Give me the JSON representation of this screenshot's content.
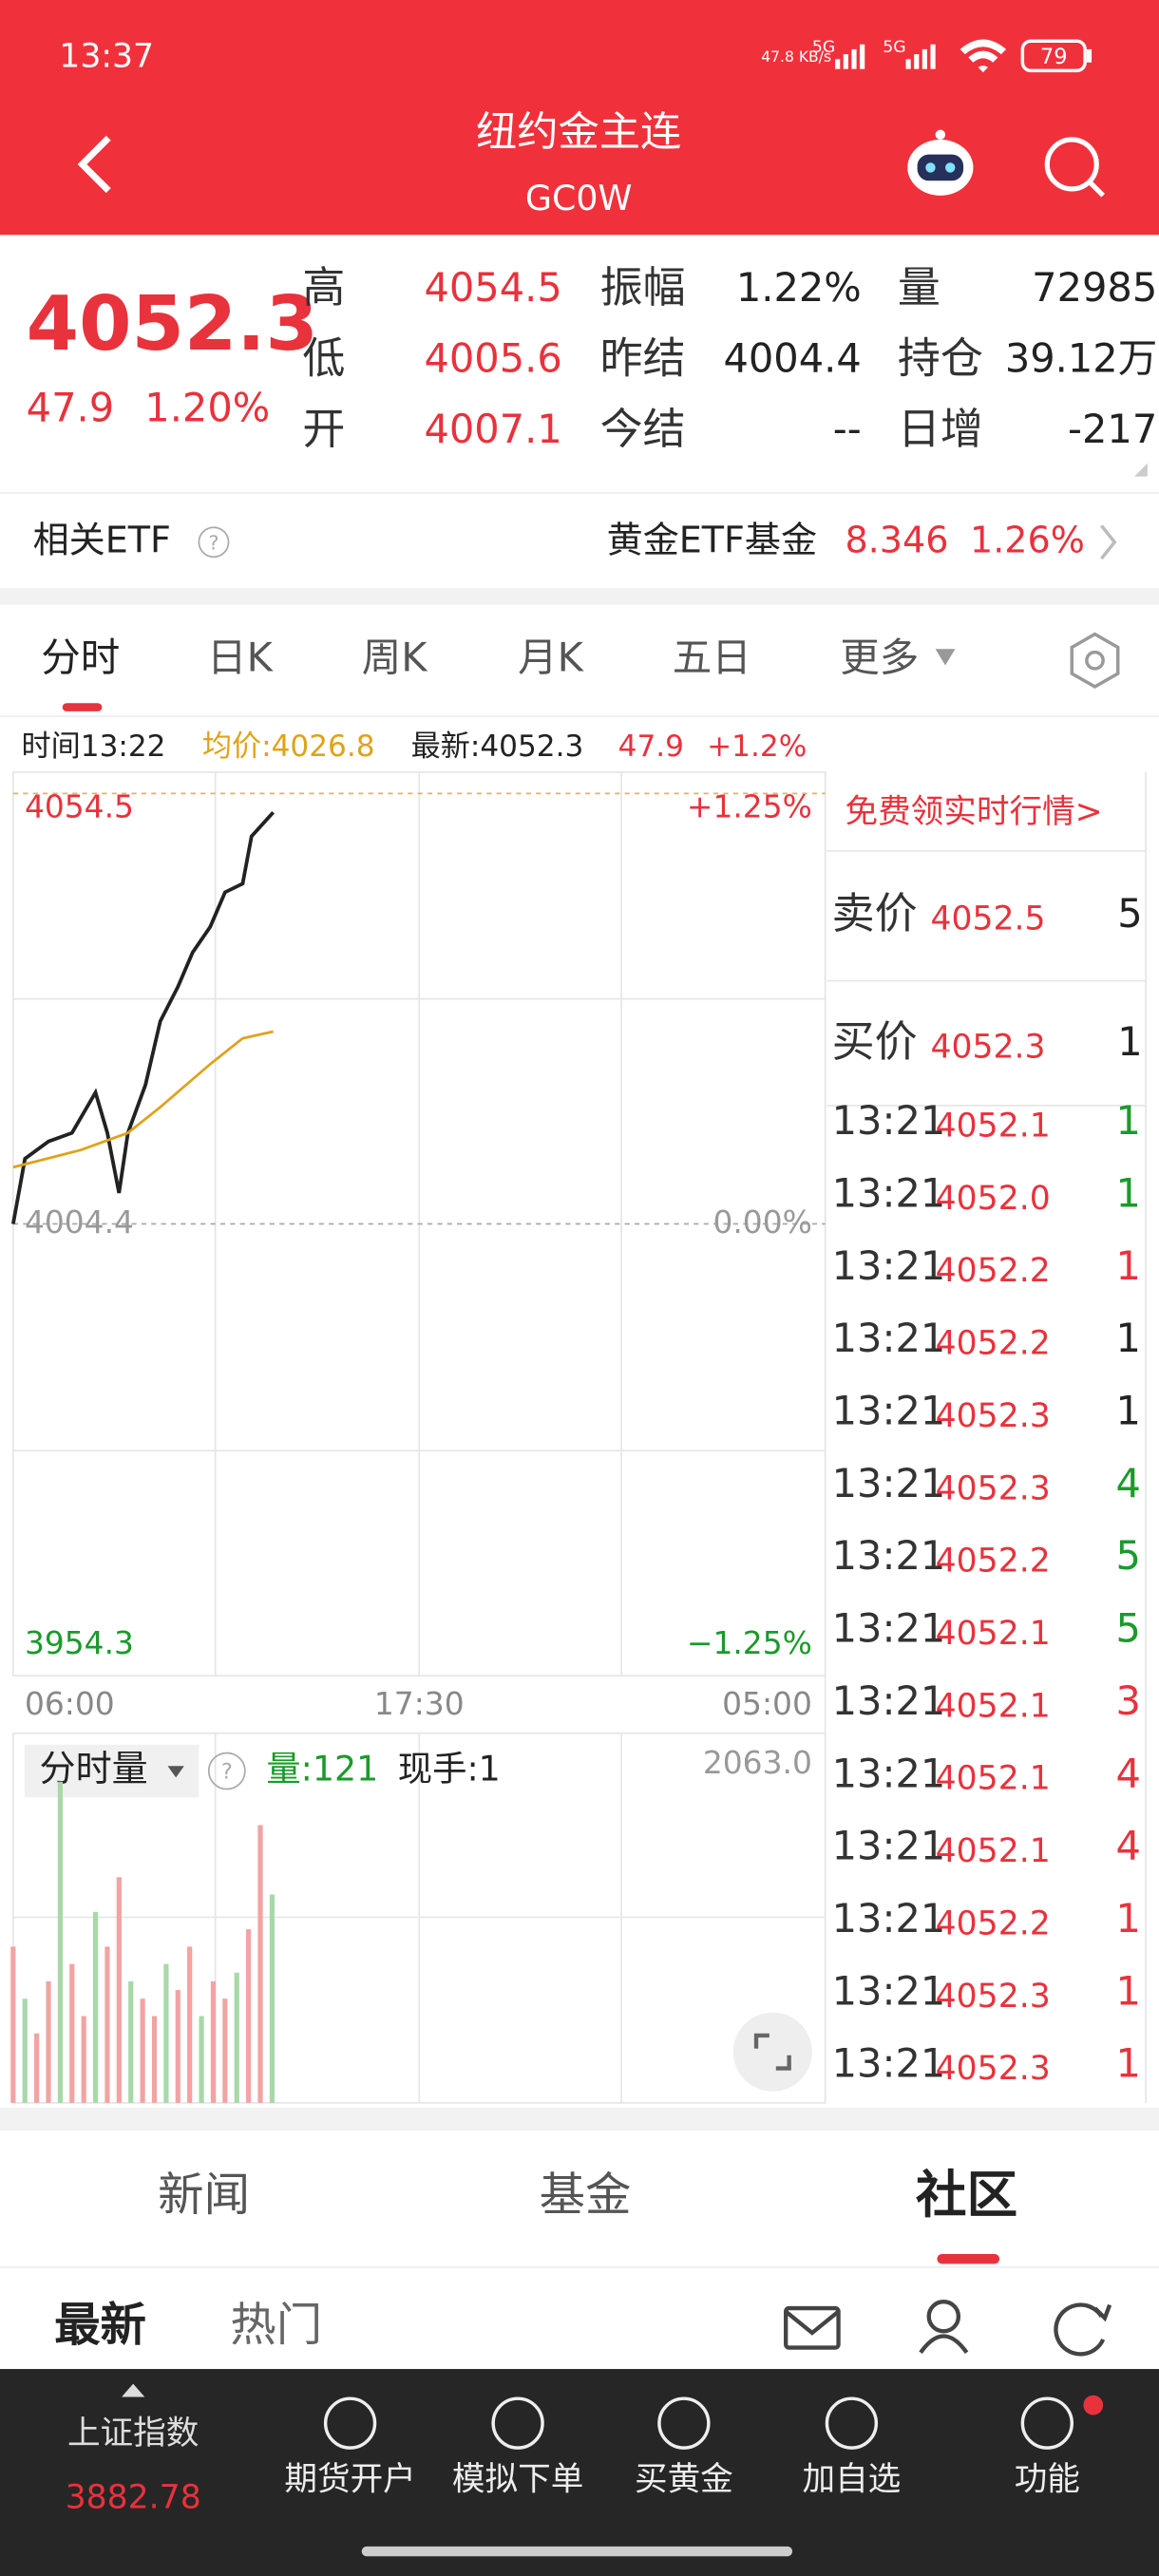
{
  "status_bar": {
    "time": "13:37",
    "net_speed": "47.8 KB/s",
    "net1": "5G",
    "net2": "5G",
    "battery": "79"
  },
  "header": {
    "title": "纽约金主连",
    "code": "GC0W"
  },
  "quote": {
    "price": "4052.3",
    "change": "47.9",
    "change_pct": "1.20%",
    "stats": [
      [
        [
          "高",
          "4054.5"
        ],
        [
          "振幅",
          "1.22%"
        ],
        [
          "量",
          "72985"
        ]
      ],
      [
        [
          "低",
          "4005.6"
        ],
        [
          "昨结",
          "4004.4"
        ],
        [
          "持仓",
          "39.12万"
        ]
      ],
      [
        [
          "开",
          "4007.1"
        ],
        [
          "今结",
          "--"
        ],
        [
          "日增",
          "-217"
        ]
      ]
    ]
  },
  "etf": {
    "label": "相关ETF",
    "fund": "黄金ETF基金",
    "price": "8.346",
    "pct": "1.26%"
  },
  "tabs": [
    "分时",
    "日K",
    "周K",
    "月K",
    "五日",
    "更多"
  ],
  "chart_info": {
    "time": "时间13:22",
    "avg": "均价:4026.8",
    "latest": "最新:4052.3",
    "change": "47.9",
    "pct": "+1.2%"
  },
  "chart_data": [
    {
      "type": "line",
      "xlim": [
        "06:00",
        "05:00"
      ],
      "xticks": [
        "06:00",
        "17:30",
        "05:00"
      ],
      "ylim": [
        3954.3,
        4054.5
      ],
      "yticks": [
        3954.3,
        4004.4,
        4054.5
      ],
      "ytick_colors": [
        "#1a9a2a",
        "#999999",
        "#e8323c"
      ],
      "y2lim": [
        -1.25,
        1.25
      ],
      "y2ticks": [
        {
          "value": -1.25,
          "label": "−1.25%"
        },
        {
          "value": 0,
          "label": "0.00%"
        },
        {
          "value": 1.25,
          "label": "+1.25%"
        }
      ],
      "series": [
        {
          "color": "#222222",
          "x": [
            "06:00",
            "06:20",
            "07:00",
            "07:40",
            "08:20",
            "08:40",
            "09:00",
            "09:15",
            "09:45",
            "10:10",
            "10:40",
            "11:05",
            "11:35",
            "12:00",
            "12:30",
            "12:45",
            "13:22"
          ],
          "values": [
            4004.4,
            4012,
            4014,
            4015,
            4019.7,
            4015,
            4008,
            4015,
            4020.6,
            4028,
            4032,
            4036,
            4039,
            4043,
            4044,
            4049.5,
            4052.3
          ]
        },
        {
          "color": "#e0a21b",
          "x": [
            "06:00",
            "07:55",
            "09:15",
            "10:10",
            "11:35",
            "12:30",
            "13:22"
          ],
          "values": [
            4011,
            4013,
            4015,
            4018,
            4023,
            4026,
            4026.8
          ]
        }
      ]
    },
    {
      "type": "bar",
      "title": "分时量",
      "volume": "量:121",
      "hand": "现手:1",
      "color": "#f2a3a3",
      "ylim": [
        0,
        2063.0
      ],
      "yticks": [
        {
          "value": 2063.0,
          "label": "2063.0"
        }
      ],
      "x": [
        "06:00",
        "06:20",
        "06:40",
        "07:00",
        "07:20",
        "07:40",
        "08:00",
        "08:20",
        "08:40",
        "09:00",
        "09:20",
        "09:40",
        "10:00",
        "10:20",
        "10:40",
        "11:00",
        "11:20",
        "11:40",
        "12:00",
        "12:20",
        "12:40",
        "13:00",
        "13:20"
      ],
      "values": [
        900,
        600,
        400,
        700,
        1850,
        800,
        500,
        1100,
        900,
        1300,
        700,
        600,
        500,
        800,
        650,
        900,
        500,
        700,
        600,
        750,
        1000,
        1600,
        1200
      ]
    }
  ],
  "order_book": {
    "promo": "免费领实时行情>",
    "ask": {
      "label": "卖价",
      "price": "4052.5",
      "qty": "5"
    },
    "bid": {
      "label": "买价",
      "price": "4052.3",
      "qty": "1"
    },
    "trades": [
      {
        "time": "13:21",
        "price": "4052.1",
        "qty": "1",
        "color": "#1a9a2a"
      },
      {
        "time": "13:21",
        "price": "4052.0",
        "qty": "1",
        "color": "#1a9a2a"
      },
      {
        "time": "13:21",
        "price": "4052.2",
        "qty": "1",
        "color": "#e8323c"
      },
      {
        "time": "13:21",
        "price": "4052.2",
        "qty": "1",
        "color": "#222222"
      },
      {
        "time": "13:21",
        "price": "4052.3",
        "qty": "1",
        "color": "#222222"
      },
      {
        "time": "13:21",
        "price": "4052.3",
        "qty": "4",
        "color": "#1a9a2a"
      },
      {
        "time": "13:21",
        "price": "4052.2",
        "qty": "5",
        "color": "#1a9a2a"
      },
      {
        "time": "13:21",
        "price": "4052.1",
        "qty": "5",
        "color": "#1a9a2a"
      },
      {
        "time": "13:21",
        "price": "4052.1",
        "qty": "3",
        "color": "#e8323c"
      },
      {
        "time": "13:21",
        "price": "4052.1",
        "qty": "4",
        "color": "#e8323c"
      },
      {
        "time": "13:21",
        "price": "4052.1",
        "qty": "4",
        "color": "#e8323c"
      },
      {
        "time": "13:21",
        "price": "4052.2",
        "qty": "1",
        "color": "#e8323c"
      },
      {
        "time": "13:21",
        "price": "4052.3",
        "qty": "1",
        "color": "#e8323c"
      },
      {
        "time": "13:21",
        "price": "4052.3",
        "qty": "1",
        "color": "#e8323c"
      }
    ]
  },
  "section_tabs": [
    "新闻",
    "基金",
    "社区"
  ],
  "sub_tabs": [
    "最新",
    "热门"
  ],
  "bottom_nav": {
    "index_name": "上证指数",
    "index_value": "3882.78",
    "items": [
      "期货开户",
      "模拟下单",
      "买黄金",
      "加自选",
      "功能"
    ]
  }
}
